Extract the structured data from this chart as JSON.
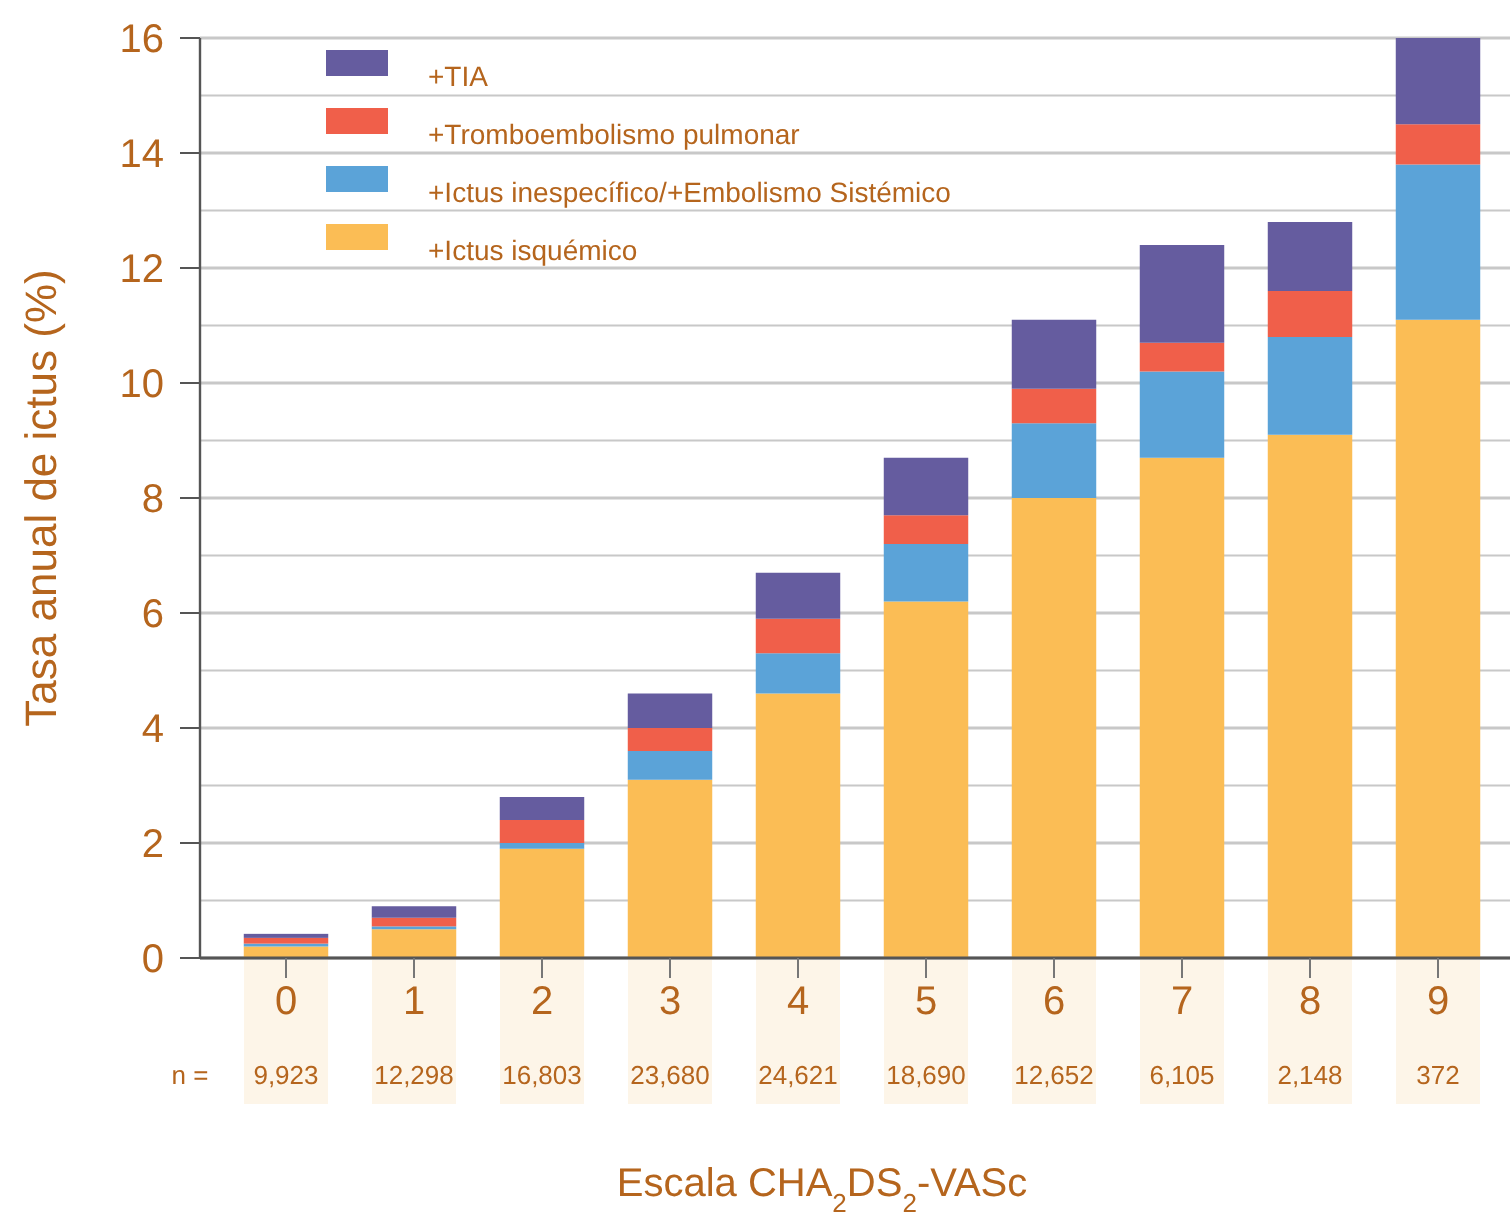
{
  "chart_data": {
    "type": "bar",
    "stacked": true,
    "xlabel": "Escala CHA$_{2}$DS$_{2}$-VASc",
    "ylabel": "Tasa anual de ictus (%)",
    "categories": [
      "0",
      "1",
      "2",
      "3",
      "4",
      "5",
      "6",
      "7",
      "8",
      "9"
    ],
    "series": [
      {
        "name": "+Ictus isquémico",
        "color": "#fbbd55",
        "values": [
          0.2,
          0.5,
          1.9,
          3.1,
          4.6,
          6.2,
          8.0,
          8.7,
          9.1,
          11.1
        ]
      },
      {
        "name": "+Ictus inespecífico/+Embolismo Sistémico",
        "color": "#5ba3d8",
        "values": [
          0.05,
          0.05,
          0.1,
          0.5,
          0.7,
          1.0,
          1.3,
          1.5,
          1.7,
          2.7
        ]
      },
      {
        "name": "+Tromboembolismo pulmonar",
        "color": "#f05f4a",
        "values": [
          0.1,
          0.15,
          0.4,
          0.4,
          0.6,
          0.5,
          0.6,
          0.5,
          0.8,
          0.7
        ]
      },
      {
        "name": "+TIA",
        "color": "#655c9f",
        "values": [
          0.07,
          0.2,
          0.4,
          0.6,
          0.8,
          1.0,
          1.2,
          1.7,
          1.2,
          1.5
        ]
      }
    ],
    "ylim": [
      0,
      16
    ],
    "yticks": [
      0,
      {
        "value": 1,
        "label": null
      },
      2,
      {
        "value": 3,
        "label": null
      },
      4,
      {
        "value": 5,
        "label": null
      },
      6,
      {
        "value": 7,
        "label": null
      },
      8,
      {
        "value": 9,
        "label": null
      },
      10,
      {
        "value": 11,
        "label": null
      },
      12,
      {
        "value": 13,
        "label": null
      },
      14,
      {
        "value": 15,
        "label": null
      },
      16
    ],
    "grid": "y",
    "legend": "top left",
    "annotations": [
      "n =",
      "9,923",
      "12,298",
      "16,803",
      "23,680",
      "24,621",
      "18,690",
      "12,652",
      "6,105",
      "2,148",
      "372"
    ]
  }
}
